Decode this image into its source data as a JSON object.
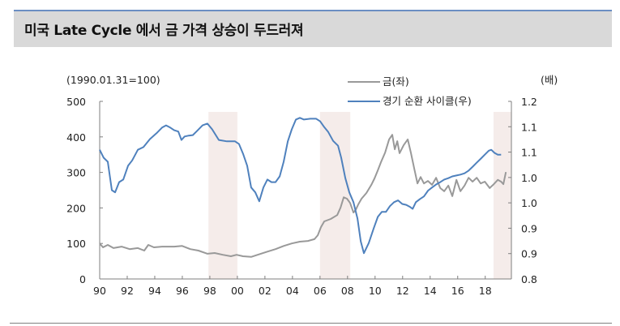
{
  "header": {
    "title": "미국 Late Cycle 에서 금 가격 상승이 두드러져"
  },
  "colors": {
    "gold_line": "#999999",
    "cycle_line": "#4f81bd",
    "shade": "#f5ecea",
    "title_bg": "#d9d9d9",
    "title_border": "#6b8fc3",
    "axis": "#7f7f7f"
  },
  "chart_data": {
    "type": "line",
    "title": "미국 Late Cycle 에서 금 가격 상승이 두드러져",
    "left_axis": {
      "unit_label": "(1990.01.31=100)",
      "ylim": [
        0,
        500
      ],
      "ticks": [
        0,
        100,
        200,
        300,
        400,
        500
      ],
      "tick_labels": [
        "0",
        "100",
        "200",
        "300",
        "400",
        "500"
      ]
    },
    "right_axis": {
      "unit_label": "(배)",
      "ylim": [
        0.8,
        1.2
      ],
      "tick_labels": [
        "0.8",
        "0.9",
        "0.9",
        "1.0",
        "1.0",
        "1.1",
        "1.1",
        "1.2"
      ]
    },
    "x_axis": {
      "xlim": [
        1990,
        2019.9
      ],
      "ticks": [
        1990,
        1992,
        1994,
        1996,
        1998,
        2000,
        2002,
        2004,
        2006,
        2008,
        2010,
        2012,
        2014,
        2016,
        2018
      ],
      "tick_labels": [
        "90",
        "92",
        "94",
        "96",
        "98",
        "00",
        "02",
        "04",
        "06",
        "08",
        "10",
        "12",
        "14",
        "16",
        "18"
      ]
    },
    "shaded_periods": [
      {
        "start": 1997.9,
        "end": 2000.0,
        "label": "Late Cycle"
      },
      {
        "start": 2006.0,
        "end": 2008.2,
        "label": "Late Cycle"
      },
      {
        "start": 2018.6,
        "end": 2019.9,
        "label": "Late Cycle"
      }
    ],
    "legend": [
      {
        "label": "금(좌)",
        "axis": "left",
        "color": "#999999"
      },
      {
        "label": "경기 순환 사이클(우)",
        "axis": "right",
        "color": "#4f81bd"
      }
    ],
    "series": [
      {
        "name": "금(좌)",
        "axis": "left",
        "x": [
          1990.0,
          1990.24,
          1990.59,
          1991.0,
          1991.59,
          1992.18,
          1992.77,
          1993.24,
          1993.53,
          1993.94,
          1994.53,
          1995.41,
          1995.99,
          1996.58,
          1997.17,
          1997.82,
          1998.35,
          1998.94,
          1999.53,
          1999.94,
          2000.41,
          2001.0,
          2001.47,
          2002.18,
          2002.77,
          2003.36,
          2003.95,
          2004.54,
          2005.13,
          2005.6,
          2005.84,
          2006.07,
          2006.31,
          2006.78,
          2007.25,
          2007.49,
          2007.72,
          2007.96,
          2008.19,
          2008.43,
          2008.61,
          2008.78,
          2009.02,
          2009.37,
          2009.73,
          2009.96,
          2010.2,
          2010.43,
          2010.73,
          2011.02,
          2011.25,
          2011.43,
          2011.61,
          2011.78,
          2012.08,
          2012.37,
          2012.61,
          2012.84,
          2013.08,
          2013.31,
          2013.55,
          2013.84,
          2014.14,
          2014.43,
          2014.73,
          2015.02,
          2015.32,
          2015.61,
          2015.91,
          2016.2,
          2016.5,
          2016.79,
          2017.08,
          2017.38,
          2017.67,
          2017.97,
          2018.32,
          2018.62,
          2018.91,
          2019.15,
          2019.32,
          2019.5
        ],
        "values": [
          100,
          89,
          96,
          87,
          91,
          84,
          87,
          80,
          96,
          89,
          91,
          91,
          93,
          84,
          80,
          71,
          73,
          68,
          64,
          68,
          64,
          62,
          68,
          77,
          84,
          93,
          100,
          105,
          107,
          112,
          123,
          146,
          162,
          169,
          180,
          201,
          230,
          226,
          214,
          187,
          196,
          210,
          226,
          242,
          265,
          283,
          306,
          329,
          356,
          393,
          406,
          365,
          388,
          354,
          377,
          393,
          354,
          311,
          269,
          287,
          269,
          276,
          265,
          285,
          256,
          247,
          263,
          233,
          279,
          247,
          263,
          285,
          274,
          285,
          269,
          274,
          256,
          267,
          279,
          274,
          267,
          301
        ]
      },
      {
        "name": "경기 순환 사이클(우)",
        "axis": "right",
        "x": [
          1990.0,
          1990.29,
          1990.59,
          1990.88,
          1991.12,
          1991.41,
          1991.71,
          1992.06,
          1992.36,
          1992.77,
          1993.18,
          1993.65,
          1994.12,
          1994.53,
          1994.82,
          1995.12,
          1995.41,
          1995.71,
          1995.94,
          1996.17,
          1996.47,
          1996.76,
          1997.06,
          1997.47,
          1997.82,
          1998.17,
          1998.65,
          1999.24,
          1999.83,
          2000.12,
          2000.41,
          2000.71,
          2001.0,
          2001.3,
          2001.59,
          2001.89,
          2002.18,
          2002.48,
          2002.77,
          2003.07,
          2003.36,
          2003.66,
          2003.95,
          2004.25,
          2004.54,
          2004.83,
          2005.3,
          2005.72,
          2006.01,
          2006.31,
          2006.6,
          2006.95,
          2007.31,
          2007.54,
          2007.84,
          2008.13,
          2008.43,
          2008.72,
          2008.96,
          2009.19,
          2009.54,
          2009.9,
          2010.2,
          2010.49,
          2010.79,
          2011.08,
          2011.38,
          2011.67,
          2011.97,
          2012.26,
          2012.55,
          2012.73,
          2012.96,
          2013.26,
          2013.55,
          2013.85,
          2014.14,
          2014.44,
          2014.73,
          2015.02,
          2015.32,
          2015.61,
          2015.91,
          2016.2,
          2016.5,
          2016.79,
          2017.09,
          2017.38,
          2017.68,
          2017.97,
          2018.26,
          2018.44,
          2018.67,
          2018.91,
          2019.15
        ],
        "values": [
          1.091,
          1.073,
          1.064,
          1.0,
          0.995,
          1.018,
          1.024,
          1.055,
          1.067,
          1.091,
          1.097,
          1.115,
          1.128,
          1.141,
          1.146,
          1.141,
          1.135,
          1.132,
          1.113,
          1.121,
          1.123,
          1.124,
          1.133,
          1.146,
          1.15,
          1.137,
          1.113,
          1.11,
          1.11,
          1.104,
          1.082,
          1.055,
          1.006,
          0.995,
          0.975,
          1.006,
          1.024,
          1.018,
          1.018,
          1.031,
          1.064,
          1.11,
          1.137,
          1.159,
          1.163,
          1.159,
          1.161,
          1.161,
          1.155,
          1.142,
          1.131,
          1.111,
          1.1,
          1.073,
          1.027,
          0.995,
          0.973,
          0.936,
          0.885,
          0.858,
          0.881,
          0.914,
          0.94,
          0.951,
          0.951,
          0.964,
          0.973,
          0.977,
          0.969,
          0.967,
          0.962,
          0.958,
          0.973,
          0.98,
          0.986,
          0.999,
          1.006,
          1.013,
          1.018,
          1.024,
          1.027,
          1.031,
          1.033,
          1.035,
          1.038,
          1.044,
          1.053,
          1.062,
          1.071,
          1.08,
          1.089,
          1.091,
          1.084,
          1.08,
          1.08
        ]
      }
    ]
  }
}
